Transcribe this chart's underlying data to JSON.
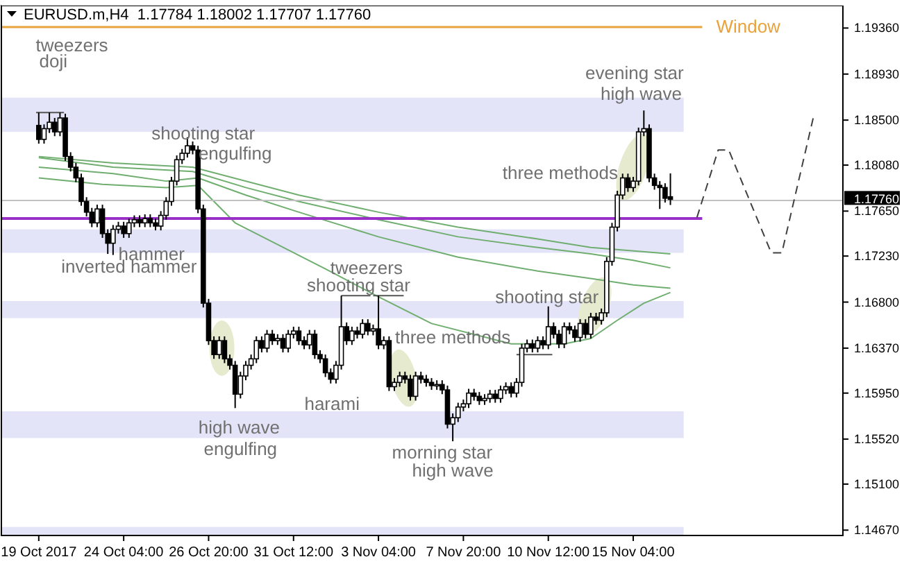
{
  "chart_data": {
    "type": "candlestick",
    "title": "EURUSD.m,H4  1.17784 1.18002 1.17707 1.17760",
    "categories": [
      "19 Oct 2017",
      null,
      null,
      null,
      null,
      null,
      null,
      null,
      null,
      null,
      null,
      null,
      null,
      null,
      null,
      null,
      "24 Oct 04:00",
      null,
      null,
      null,
      null,
      null,
      null,
      null,
      null,
      null,
      null,
      null,
      null,
      null,
      null,
      null,
      "26 Oct 20:00",
      null,
      null,
      null,
      null,
      null,
      null,
      null,
      null,
      null,
      null,
      null,
      null,
      null,
      null,
      null,
      "31 Oct 12:00",
      null,
      null,
      null,
      null,
      null,
      null,
      null,
      null,
      null,
      null,
      null,
      null,
      null,
      null,
      null,
      "3 Nov 04:00",
      null,
      null,
      null,
      null,
      null,
      null,
      null,
      null,
      null,
      null,
      null,
      null,
      null,
      null,
      null,
      "7 Nov 20:00",
      null,
      null,
      null,
      null,
      null,
      null,
      null,
      null,
      null,
      null,
      null,
      null,
      null,
      null,
      null,
      "10 Nov 12:00",
      null,
      null,
      null,
      null,
      null,
      null,
      null,
      null,
      null,
      null,
      null,
      null,
      null,
      null,
      null,
      "15 Nov 04:00",
      null,
      null,
      null,
      null,
      null,
      null,
      null,
      null,
      null,
      null,
      null,
      null,
      null,
      null,
      null,
      null,
      null,
      null,
      null,
      null,
      null,
      null,
      null,
      null,
      null,
      null,
      null,
      null,
      null,
      null,
      null,
      null,
      null,
      null,
      null,
      null,
      null,
      null,
      null
    ],
    "ohlc": [
      [
        1.1845,
        1.1857,
        1.1828,
        1.1832
      ],
      [
        1.1832,
        1.1846,
        1.1828,
        1.1842
      ],
      [
        1.1842,
        1.1857,
        1.1838,
        1.1848
      ],
      [
        1.1848,
        1.1852,
        1.1835,
        1.1839
      ],
      [
        1.1839,
        1.1857,
        1.1835,
        1.1852
      ],
      [
        1.1852,
        1.1856,
        1.1812,
        1.1816
      ],
      [
        1.1816,
        1.182,
        1.1802,
        1.1806
      ],
      [
        1.1806,
        1.181,
        1.1792,
        1.1796
      ],
      [
        1.1796,
        1.18,
        1.177,
        1.1774
      ],
      [
        1.1774,
        1.1778,
        1.176,
        1.1764
      ],
      [
        1.1764,
        1.1768,
        1.175,
        1.1754
      ],
      [
        1.1754,
        1.1771,
        1.175,
        1.1767
      ],
      [
        1.1767,
        1.1771,
        1.174,
        1.1744
      ],
      [
        1.1744,
        1.1748,
        1.1725,
        1.1735
      ],
      [
        1.1735,
        1.1752,
        1.1724,
        1.1748
      ],
      [
        1.1748,
        1.1755,
        1.1744,
        1.1751
      ],
      [
        1.1751,
        1.1755,
        1.174,
        1.1744
      ],
      [
        1.1744,
        1.1758,
        1.174,
        1.1754
      ],
      [
        1.1754,
        1.1761,
        1.175,
        1.1757
      ],
      [
        1.1757,
        1.1761,
        1.175,
        1.1754
      ],
      [
        1.1754,
        1.1762,
        1.175,
        1.1758
      ],
      [
        1.1758,
        1.1762,
        1.175,
        1.1754
      ],
      [
        1.1754,
        1.1758,
        1.1747,
        1.1751
      ],
      [
        1.1751,
        1.1765,
        1.1747,
        1.1761
      ],
      [
        1.1761,
        1.1778,
        1.1757,
        1.1774
      ],
      [
        1.1774,
        1.1797,
        1.177,
        1.1793
      ],
      [
        1.1793,
        1.1817,
        1.1789,
        1.1813
      ],
      [
        1.1813,
        1.1823,
        1.1809,
        1.1819
      ],
      [
        1.1819,
        1.1834,
        1.1815,
        1.1826
      ],
      [
        1.1826,
        1.183,
        1.1818,
        1.1822
      ],
      [
        1.1822,
        1.1826,
        1.1763,
        1.1767
      ],
      [
        1.1767,
        1.1771,
        1.1675,
        1.1679
      ],
      [
        1.1679,
        1.1683,
        1.164,
        1.1644
      ],
      [
        1.1644,
        1.1648,
        1.1627,
        1.1631
      ],
      [
        1.1631,
        1.1648,
        1.1627,
        1.1644
      ],
      [
        1.1644,
        1.1648,
        1.1623,
        1.1627
      ],
      [
        1.1627,
        1.1631,
        1.1617,
        1.1621
      ],
      [
        1.1621,
        1.1625,
        1.1581,
        1.1594
      ],
      [
        1.1594,
        1.1615,
        1.159,
        1.1611
      ],
      [
        1.1611,
        1.1625,
        1.1607,
        1.1621
      ],
      [
        1.1621,
        1.1631,
        1.1617,
        1.1627
      ],
      [
        1.1627,
        1.1648,
        1.1623,
        1.1644
      ],
      [
        1.1644,
        1.1648,
        1.1633,
        1.1637
      ],
      [
        1.1637,
        1.1654,
        1.1633,
        1.165
      ],
      [
        1.165,
        1.1654,
        1.164,
        1.1644
      ],
      [
        1.1644,
        1.165,
        1.164,
        1.1646
      ],
      [
        1.1646,
        1.165,
        1.1633,
        1.1637
      ],
      [
        1.1637,
        1.1654,
        1.1633,
        1.165
      ],
      [
        1.165,
        1.1657,
        1.1646,
        1.1653
      ],
      [
        1.1653,
        1.1657,
        1.164,
        1.1644
      ],
      [
        1.1644,
        1.1648,
        1.1636,
        1.164
      ],
      [
        1.164,
        1.1654,
        1.1636,
        1.165
      ],
      [
        1.165,
        1.1654,
        1.1627,
        1.1631
      ],
      [
        1.1631,
        1.1635,
        1.1623,
        1.1627
      ],
      [
        1.1627,
        1.1631,
        1.161,
        1.1614
      ],
      [
        1.1614,
        1.1618,
        1.1604,
        1.1608
      ],
      [
        1.1608,
        1.1625,
        1.1604,
        1.1621
      ],
      [
        1.1621,
        1.1686,
        1.1617,
        1.1657
      ],
      [
        1.1657,
        1.1661,
        1.164,
        1.1644
      ],
      [
        1.1644,
        1.1657,
        1.164,
        1.1653
      ],
      [
        1.1653,
        1.1657,
        1.1646,
        1.165
      ],
      [
        1.165,
        1.1664,
        1.1646,
        1.166
      ],
      [
        1.166,
        1.1664,
        1.1649,
        1.1653
      ],
      [
        1.1653,
        1.1659,
        1.1649,
        1.1655
      ],
      [
        1.1655,
        1.1686,
        1.1636,
        1.164
      ],
      [
        1.164,
        1.1648,
        1.1636,
        1.1644
      ],
      [
        1.1644,
        1.1648,
        1.1597,
        1.1601
      ],
      [
        1.1601,
        1.1609,
        1.1597,
        1.1605
      ],
      [
        1.1605,
        1.1615,
        1.1601,
        1.1611
      ],
      [
        1.1611,
        1.1615,
        1.1604,
        1.1608
      ],
      [
        1.1608,
        1.1612,
        1.1588,
        1.1592
      ],
      [
        1.1592,
        1.1615,
        1.1588,
        1.1611
      ],
      [
        1.1611,
        1.1615,
        1.1604,
        1.1608
      ],
      [
        1.1608,
        1.1612,
        1.1601,
        1.1605
      ],
      [
        1.1605,
        1.1609,
        1.1598,
        1.1602
      ],
      [
        1.1602,
        1.1607,
        1.1598,
        1.1603
      ],
      [
        1.1603,
        1.1607,
        1.1594,
        1.1598
      ],
      [
        1.1598,
        1.1602,
        1.1562,
        1.1566
      ],
      [
        1.1566,
        1.1576,
        1.155,
        1.1572
      ],
      [
        1.1572,
        1.1586,
        1.1568,
        1.1582
      ],
      [
        1.1582,
        1.1589,
        1.1578,
        1.1585
      ],
      [
        1.1585,
        1.1599,
        1.1581,
        1.1595
      ],
      [
        1.1595,
        1.1599,
        1.1588,
        1.1592
      ],
      [
        1.1592,
        1.1596,
        1.1584,
        1.1588
      ],
      [
        1.1588,
        1.1594,
        1.1584,
        1.159
      ],
      [
        1.159,
        1.1598,
        1.1586,
        1.1594
      ],
      [
        1.1594,
        1.1598,
        1.1586,
        1.159
      ],
      [
        1.159,
        1.1602,
        1.1586,
        1.1598
      ],
      [
        1.1598,
        1.1605,
        1.1594,
        1.1601
      ],
      [
        1.1601,
        1.1605,
        1.1591,
        1.1595
      ],
      [
        1.1595,
        1.1609,
        1.1591,
        1.1605
      ],
      [
        1.1605,
        1.1641,
        1.1601,
        1.1637
      ],
      [
        1.1637,
        1.1645,
        1.1633,
        1.1641
      ],
      [
        1.1641,
        1.1645,
        1.1633,
        1.1637
      ],
      [
        1.1637,
        1.1648,
        1.1633,
        1.1644
      ],
      [
        1.1644,
        1.1648,
        1.1636,
        1.164
      ],
      [
        1.164,
        1.1676,
        1.1636,
        1.1657
      ],
      [
        1.1657,
        1.1661,
        1.1646,
        1.165
      ],
      [
        1.165,
        1.1654,
        1.1637,
        1.1641
      ],
      [
        1.1641,
        1.1661,
        1.1637,
        1.1657
      ],
      [
        1.1657,
        1.1661,
        1.165,
        1.1654
      ],
      [
        1.1654,
        1.1658,
        1.1643,
        1.1647
      ],
      [
        1.1647,
        1.1664,
        1.1643,
        1.166
      ],
      [
        1.166,
        1.1664,
        1.1646,
        1.165
      ],
      [
        1.165,
        1.167,
        1.1646,
        1.1666
      ],
      [
        1.1666,
        1.167,
        1.1659,
        1.1663
      ],
      [
        1.1663,
        1.1674,
        1.1659,
        1.167
      ],
      [
        1.167,
        1.1722,
        1.1666,
        1.1718
      ],
      [
        1.1718,
        1.1754,
        1.1714,
        1.175
      ],
      [
        1.175,
        1.1784,
        1.1746,
        1.178
      ],
      [
        1.178,
        1.18,
        1.1776,
        1.1796
      ],
      [
        1.1796,
        1.18,
        1.1783,
        1.1787
      ],
      [
        1.1787,
        1.1797,
        1.1783,
        1.1793
      ],
      [
        1.1793,
        1.1843,
        1.1789,
        1.1839
      ],
      [
        1.1839,
        1.1859,
        1.1835,
        1.1842
      ],
      [
        1.1842,
        1.1846,
        1.1792,
        1.1796
      ],
      [
        1.1796,
        1.18,
        1.1785,
        1.1789
      ],
      [
        1.1789,
        1.1793,
        1.1767,
        1.1787
      ],
      [
        1.1787,
        1.1791,
        1.1773,
        1.1777
      ],
      [
        1.17784,
        1.18002,
        1.17707,
        1.1776
      ],
      null,
      null,
      null,
      null,
      null,
      null,
      null,
      null,
      null,
      null,
      null,
      null,
      null,
      null,
      null,
      null,
      null,
      null,
      null,
      null,
      null,
      null,
      null,
      null,
      null,
      null,
      null,
      null,
      null,
      null,
      null,
      null
    ],
    "series": [
      {
        "type": "line",
        "color": "#6fae6f",
        "values": [
          1.1796,
          null,
          null,
          null,
          null,
          null,
          null,
          null,
          null,
          null,
          null,
          null,
          1.179,
          null,
          null,
          null,
          null,
          null,
          null,
          null,
          null,
          null,
          null,
          null,
          1.1787,
          null,
          null,
          null,
          null,
          null,
          1.1789,
          null,
          null,
          null,
          null,
          null,
          null,
          1.1754,
          null,
          null,
          null,
          null,
          null,
          null,
          null,
          null,
          null,
          null,
          null,
          null,
          null,
          null,
          null,
          null,
          1.1711,
          null,
          null,
          null,
          null,
          null,
          null,
          null,
          null,
          null,
          1.1685,
          null,
          null,
          null,
          null,
          null,
          null,
          null,
          null,
          null,
          1.166,
          null,
          null,
          null,
          null,
          null,
          null,
          null,
          null,
          null,
          null,
          null,
          null,
          null,
          null,
          1.1641,
          null,
          null,
          null,
          null,
          null,
          null,
          null,
          null,
          null,
          1.1641,
          null,
          null,
          null,
          null,
          1.1646,
          null,
          null,
          null,
          null,
          1.1663,
          null,
          null,
          null,
          null,
          1.1679,
          null,
          null,
          null,
          null,
          1.1689,
          null,
          null,
          null,
          null,
          null,
          null,
          null,
          null,
          null,
          null,
          null,
          null,
          null,
          null,
          null,
          null,
          null,
          null,
          null,
          null,
          null,
          null,
          null,
          null,
          null,
          null,
          null,
          null,
          null,
          null,
          null,
          null
        ]
      },
      {
        "type": "line",
        "color": "#6fae6f",
        "values": [
          1.1806,
          null,
          null,
          null,
          null,
          null,
          null,
          null,
          null,
          null,
          null,
          null,
          null,
          null,
          1.18,
          null,
          null,
          null,
          null,
          null,
          null,
          null,
          null,
          null,
          1.1793,
          null,
          null,
          null,
          null,
          null,
          1.1796,
          null,
          null,
          null,
          null,
          null,
          null,
          null,
          null,
          1.178,
          null,
          null,
          null,
          null,
          null,
          null,
          null,
          null,
          null,
          1.1764,
          null,
          null,
          null,
          null,
          null,
          null,
          null,
          null,
          null,
          null,
          null,
          null,
          null,
          null,
          1.1741,
          null,
          null,
          null,
          null,
          null,
          null,
          null,
          null,
          null,
          null,
          null,
          null,
          null,
          null,
          1.1722,
          null,
          null,
          null,
          null,
          null,
          null,
          null,
          null,
          null,
          null,
          null,
          null,
          null,
          null,
          1.1709,
          null,
          null,
          null,
          null,
          null,
          null,
          null,
          null,
          null,
          1.1702,
          null,
          null,
          null,
          null,
          null,
          null,
          null,
          1.1696,
          null,
          null,
          null,
          null,
          null,
          null,
          1.1693,
          null,
          null,
          null,
          null,
          null,
          null,
          null,
          null,
          null,
          null,
          null,
          null,
          null,
          null,
          null,
          null,
          null,
          null,
          null,
          null,
          null,
          null,
          null,
          null,
          null,
          null,
          null,
          null,
          null,
          null,
          null,
          null
        ]
      },
      {
        "type": "line",
        "color": "#6fae6f",
        "values": [
          1.1815,
          null,
          null,
          null,
          null,
          null,
          null,
          null,
          null,
          null,
          null,
          null,
          null,
          null,
          1.1806,
          null,
          null,
          null,
          null,
          null,
          null,
          null,
          null,
          null,
          null,
          null,
          null,
          null,
          null,
          1.1802,
          null,
          null,
          null,
          null,
          null,
          null,
          null,
          null,
          null,
          1.1787,
          null,
          null,
          null,
          null,
          null,
          null,
          null,
          null,
          null,
          1.1774,
          null,
          null,
          null,
          null,
          null,
          null,
          null,
          null,
          null,
          null,
          null,
          null,
          null,
          null,
          1.1757,
          null,
          null,
          null,
          null,
          null,
          null,
          null,
          null,
          null,
          null,
          null,
          null,
          null,
          null,
          1.1741,
          null,
          null,
          null,
          null,
          null,
          null,
          null,
          null,
          null,
          null,
          null,
          null,
          null,
          null,
          1.1731,
          null,
          null,
          null,
          null,
          null,
          null,
          null,
          null,
          null,
          1.1725,
          null,
          null,
          null,
          null,
          null,
          null,
          null,
          1.1719,
          null,
          null,
          null,
          null,
          null,
          null,
          1.1712,
          null,
          null,
          null,
          null,
          null,
          null,
          null,
          null,
          null,
          null,
          null,
          null,
          null,
          null,
          null,
          null,
          null,
          null,
          null,
          null,
          null,
          null,
          null,
          null,
          null,
          null,
          null,
          null,
          null,
          null,
          null,
          null
        ]
      },
      {
        "type": "line",
        "color": "#6fae6f",
        "values": [
          1.1816,
          null,
          null,
          null,
          null,
          null,
          null,
          null,
          null,
          null,
          null,
          null,
          null,
          null,
          1.181,
          null,
          null,
          null,
          null,
          null,
          null,
          null,
          null,
          null,
          null,
          null,
          null,
          null,
          null,
          1.1806,
          null,
          null,
          null,
          null,
          null,
          null,
          null,
          null,
          null,
          null,
          null,
          null,
          null,
          null,
          null,
          null,
          null,
          null,
          null,
          1.178,
          null,
          null,
          null,
          null,
          null,
          null,
          null,
          null,
          null,
          null,
          null,
          null,
          null,
          null,
          1.1764,
          null,
          null,
          null,
          null,
          null,
          null,
          null,
          null,
          null,
          null,
          null,
          null,
          null,
          null,
          1.175,
          null,
          null,
          null,
          null,
          null,
          null,
          null,
          null,
          null,
          null,
          null,
          null,
          null,
          null,
          1.1739,
          null,
          null,
          null,
          null,
          null,
          null,
          null,
          null,
          null,
          1.1731,
          null,
          null,
          null,
          null,
          null,
          null,
          null,
          null,
          null,
          null,
          null,
          null,
          null,
          null,
          1.1725,
          null,
          null,
          null,
          null,
          null,
          null,
          null,
          null,
          null,
          null,
          null,
          null,
          null,
          null,
          null,
          null,
          null,
          null,
          null,
          null,
          null,
          null,
          null,
          null,
          null,
          null,
          null,
          null,
          null,
          null,
          null,
          null
        ]
      },
      {
        "type": "line",
        "color": "#404040",
        "line_style": "dashed",
        "values": [
          null,
          null,
          null,
          null,
          null,
          null,
          null,
          null,
          null,
          null,
          null,
          null,
          null,
          null,
          null,
          null,
          null,
          null,
          null,
          null,
          null,
          null,
          null,
          null,
          null,
          null,
          null,
          null,
          null,
          null,
          null,
          null,
          null,
          null,
          null,
          null,
          null,
          null,
          null,
          null,
          null,
          null,
          null,
          null,
          null,
          null,
          null,
          null,
          null,
          null,
          null,
          null,
          null,
          null,
          null,
          null,
          null,
          null,
          null,
          null,
          null,
          null,
          null,
          null,
          null,
          null,
          null,
          null,
          null,
          null,
          null,
          null,
          null,
          null,
          null,
          null,
          null,
          null,
          null,
          null,
          null,
          null,
          null,
          null,
          null,
          null,
          null,
          null,
          null,
          null,
          null,
          null,
          null,
          null,
          null,
          null,
          null,
          null,
          null,
          null,
          null,
          null,
          null,
          null,
          null,
          null,
          null,
          null,
          null,
          null,
          null,
          null,
          null,
          null,
          null,
          null,
          null,
          null,
          null,
          null,
          null,
          null,
          null,
          null,
          1.1759,
          null,
          null,
          null,
          1.1822,
          null,
          1.1822,
          null,
          null,
          null,
          null,
          null,
          null,
          null,
          1.1726,
          null,
          1.1726,
          null,
          null,
          null,
          null,
          null,
          1.1854,
          null,
          null,
          null,
          null,
          null
        ]
      }
    ],
    "ylim": [
      1.1462,
      1.1957
    ],
    "yticks": [
      {
        "value": 1.1936,
        "label": "1.19360"
      },
      {
        "value": 1.1893,
        "label": "1.18930"
      },
      {
        "value": 1.185,
        "label": "1.18500"
      },
      {
        "value": 1.1808,
        "label": "1.18080"
      },
      {
        "value": 1.1765,
        "label": "1.17650"
      },
      {
        "value": 1.1723,
        "label": "1.17230"
      },
      {
        "value": 1.168,
        "label": "1.16800"
      },
      {
        "value": 1.1637,
        "label": "1.16370"
      },
      {
        "value": 1.1595,
        "label": "1.15950"
      },
      {
        "value": 1.1552,
        "label": "1.15520"
      },
      {
        "value": 1.151,
        "label": "1.15100"
      },
      {
        "value": 1.1467,
        "label": "1.14670"
      }
    ],
    "ref_lines": [
      {
        "axis": "y",
        "value": 1.1937,
        "label": "Window",
        "color": "#e8a33d"
      },
      {
        "axis": "y",
        "value": 1.1759,
        "color": "#9b30c8"
      },
      {
        "axis": "y",
        "value": 1.1776,
        "label": "1.17760",
        "color": "#c0c0c0"
      }
    ],
    "bands": [
      {
        "axis": "y",
        "from": 1.1839,
        "to": 1.1871,
        "color": "#e4e4f8"
      },
      {
        "axis": "y",
        "from": 1.1726,
        "to": 1.1748,
        "color": "#e4e4f8"
      },
      {
        "axis": "y",
        "from": 1.1665,
        "to": 1.1681,
        "color": "#e4e4f8"
      },
      {
        "axis": "y",
        "from": 1.1553,
        "to": 1.1578,
        "color": "#e4e4f8"
      },
      {
        "axis": "y",
        "from": 1.1462,
        "to": 1.147,
        "color": "#e4e4f8"
      }
    ],
    "annotations": [
      "tweezers",
      "doji",
      {
        "text": "shooting star",
        "y": 1.1834
      },
      "engulfing",
      {
        "text": "hammer",
        "y": 1.1724
      },
      {
        "text": "inverted hammer",
        "y": 1.1724
      },
      "high wave",
      "engulfing",
      "harami",
      "tweezers",
      "shooting star",
      "three methods",
      {
        "text": "morning star",
        "y": 1.155
      },
      "high wave",
      {
        "text": "shooting star",
        "y": 1.1676
      },
      "three methods",
      "evening star",
      "high wave"
    ]
  }
}
